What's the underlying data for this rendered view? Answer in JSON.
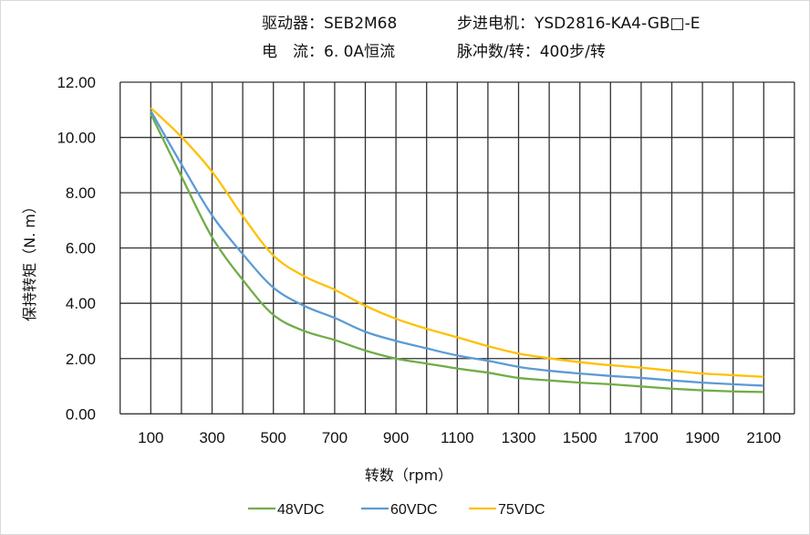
{
  "header": {
    "driver": "驱动器：SEB2M68",
    "current": "电　流：6. 0A恒流",
    "motor": "步进电机：YSD2816-KA4-GB□-E",
    "pulses": "脉冲数/转：400步/转"
  },
  "chart_data": {
    "type": "line",
    "title": "",
    "xlabel": "转数（rpm）",
    "ylabel": "保持转矩（N. m）",
    "xlim": [
      0,
      2200
    ],
    "ylim": [
      0,
      12
    ],
    "grid": true,
    "legend_position": "bottom",
    "x_ticks": [
      "100",
      "300",
      "500",
      "700",
      "900",
      "1100",
      "1300",
      "1500",
      "1700",
      "1900",
      "2100"
    ],
    "y_ticks": [
      "0.00",
      "2.00",
      "4.00",
      "6.00",
      "8.00",
      "10.00",
      "12.00"
    ],
    "x": [
      100,
      200,
      300,
      400,
      500,
      600,
      700,
      800,
      900,
      1000,
      1100,
      1200,
      1300,
      1400,
      1500,
      1600,
      1700,
      1800,
      1900,
      2000,
      2100
    ],
    "series": [
      {
        "name": "48VDC",
        "color": "#70AD47",
        "values": [
          10.85,
          8.59,
          6.39,
          4.85,
          3.58,
          3.0,
          2.67,
          2.29,
          2.0,
          1.82,
          1.64,
          1.49,
          1.3,
          1.21,
          1.13,
          1.07,
          0.99,
          0.91,
          0.85,
          0.81,
          0.79
        ]
      },
      {
        "name": "60VDC",
        "color": "#5B9BD5",
        "values": [
          10.96,
          9.03,
          7.18,
          5.78,
          4.57,
          3.91,
          3.47,
          2.97,
          2.64,
          2.37,
          2.11,
          1.92,
          1.7,
          1.56,
          1.46,
          1.37,
          1.3,
          1.21,
          1.13,
          1.07,
          1.02
        ]
      },
      {
        "name": "75VDC",
        "color": "#FFC000",
        "values": [
          11.07,
          10.02,
          8.76,
          7.16,
          5.73,
          4.98,
          4.49,
          3.91,
          3.44,
          3.08,
          2.77,
          2.45,
          2.18,
          2.01,
          1.87,
          1.76,
          1.67,
          1.56,
          1.46,
          1.4,
          1.34
        ]
      }
    ]
  }
}
